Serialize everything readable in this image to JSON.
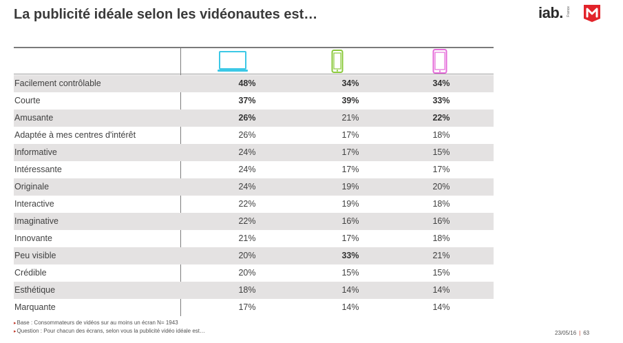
{
  "title": "La publicité idéale selon les vidéonautes est…",
  "logos": {
    "iab": "iab",
    "iab_dot": ".",
    "iab_country": "France"
  },
  "colors": {
    "laptop": "#3cc8e6",
    "smartphone": "#8ac93a",
    "tablet": "#e46ad8",
    "logo_red": "#e2232a",
    "alt_row": "#e4e2e2"
  },
  "columns": [
    {
      "icon": "laptop-icon"
    },
    {
      "icon": "smartphone-icon"
    },
    {
      "icon": "tablet-icon"
    }
  ],
  "rows": [
    {
      "label": "Facilement contrôlable",
      "values": [
        "48%",
        "34%",
        "34%"
      ],
      "bold": [
        true,
        true,
        true
      ]
    },
    {
      "label": "Courte",
      "values": [
        "37%",
        "39%",
        "33%"
      ],
      "bold": [
        true,
        true,
        true
      ]
    },
    {
      "label": "Amusante",
      "values": [
        "26%",
        "21%",
        "22%"
      ],
      "bold": [
        true,
        false,
        true
      ]
    },
    {
      "label": "Adaptée à mes centres d'intérêt",
      "values": [
        "26%",
        "17%",
        "18%"
      ],
      "bold": [
        false,
        false,
        false
      ]
    },
    {
      "label": "Informative",
      "values": [
        "24%",
        "17%",
        "15%"
      ],
      "bold": [
        false,
        false,
        false
      ]
    },
    {
      "label": "Intéressante",
      "values": [
        "24%",
        "17%",
        "17%"
      ],
      "bold": [
        false,
        false,
        false
      ]
    },
    {
      "label": "Originale",
      "values": [
        "24%",
        "19%",
        "20%"
      ],
      "bold": [
        false,
        false,
        false
      ]
    },
    {
      "label": "Interactive",
      "values": [
        "22%",
        "19%",
        "18%"
      ],
      "bold": [
        false,
        false,
        false
      ]
    },
    {
      "label": "Imaginative",
      "values": [
        "22%",
        "16%",
        "16%"
      ],
      "bold": [
        false,
        false,
        false
      ]
    },
    {
      "label": "Innovante",
      "values": [
        "21%",
        "17%",
        "18%"
      ],
      "bold": [
        false,
        false,
        false
      ]
    },
    {
      "label": "Peu visible",
      "values": [
        "20%",
        "33%",
        "21%"
      ],
      "bold": [
        false,
        true,
        false
      ]
    },
    {
      "label": "Crédible",
      "values": [
        "20%",
        "15%",
        "15%"
      ],
      "bold": [
        false,
        false,
        false
      ]
    },
    {
      "label": "Esthétique",
      "values": [
        "18%",
        "14%",
        "14%"
      ],
      "bold": [
        false,
        false,
        false
      ]
    },
    {
      "label": "Marquante",
      "values": [
        "17%",
        "14%",
        "14%"
      ],
      "bold": [
        false,
        false,
        false
      ]
    }
  ],
  "footnotes": {
    "base": "Base : Consommateurs de vidéos sur au moins un écran N= 1943",
    "question": "Question : Pour chacun des écrans, selon vous la publicité vidéo idéale est…"
  },
  "page": {
    "date": "23/05/16",
    "separator": "|",
    "number": "63"
  }
}
